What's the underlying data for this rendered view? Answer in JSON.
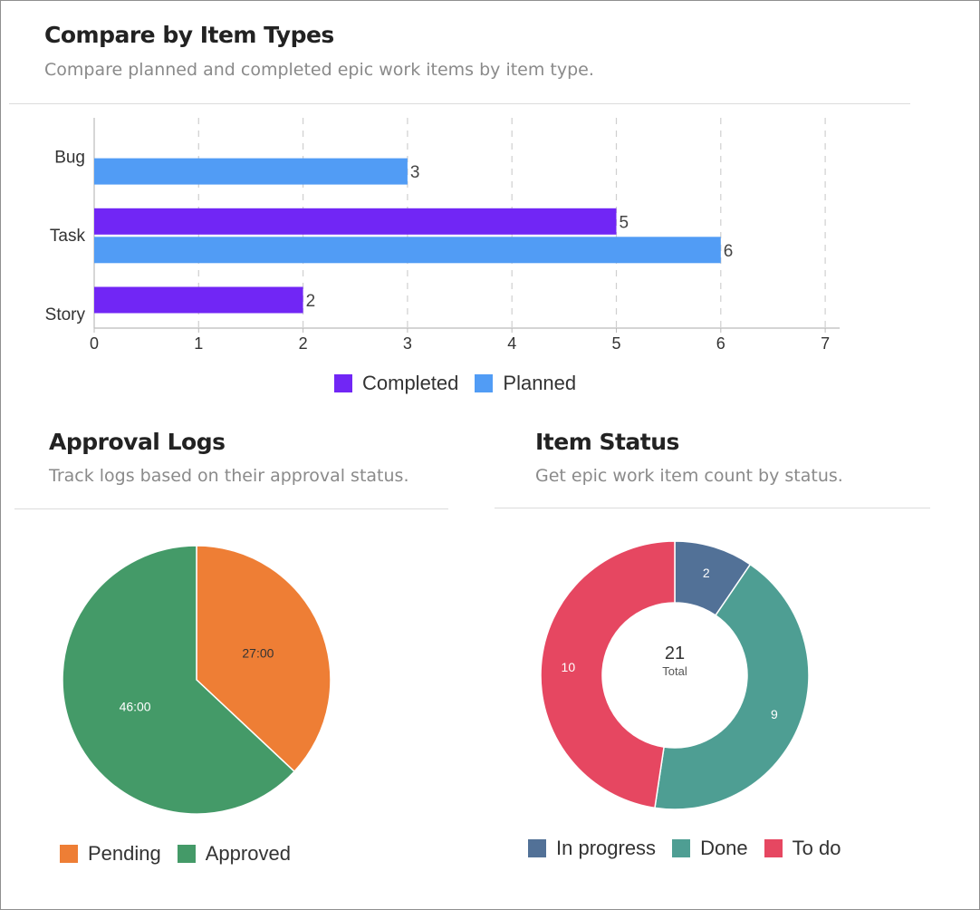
{
  "compare": {
    "title": "Compare by Item Types",
    "subtitle": "Compare planned and completed epic work items by item type."
  },
  "approval": {
    "title": "Approval Logs",
    "subtitle": "Track logs based on their approval status."
  },
  "status": {
    "title": "Item Status",
    "subtitle": "Get epic work item count by status.",
    "total_value": "21",
    "total_label": "Total"
  },
  "chart_data": [
    {
      "type": "bar",
      "orientation": "horizontal",
      "categories": [
        "Bug",
        "Task",
        "Story"
      ],
      "series": [
        {
          "name": "Completed",
          "values": [
            null,
            5,
            2
          ],
          "color": "#7126f5"
        },
        {
          "name": "Planned",
          "values": [
            3,
            6,
            null
          ],
          "color": "#519cf5"
        }
      ],
      "xlim": [
        0,
        7
      ],
      "xticks": [
        "0",
        "1",
        "2",
        "3",
        "4",
        "5",
        "6",
        "7"
      ],
      "grid": true,
      "legend": "bottom"
    },
    {
      "type": "pie",
      "labels": [
        "Pending",
        "Approved"
      ],
      "values": [
        27,
        46
      ],
      "value_labels": [
        "27:00",
        "46:00"
      ],
      "colors": [
        "#ee7e35",
        "#449a68"
      ],
      "legend": "bottom"
    },
    {
      "type": "pie",
      "donut": true,
      "labels": [
        "In progress",
        "Done",
        "To do"
      ],
      "values": [
        2,
        9,
        10
      ],
      "value_labels": [
        "2",
        "9",
        "10"
      ],
      "colors": [
        "#527197",
        "#4e9e93",
        "#e64761"
      ],
      "legend": "bottom"
    }
  ]
}
